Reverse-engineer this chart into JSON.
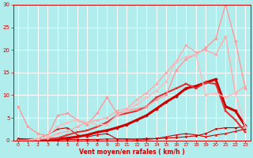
{
  "bg_color": "#b2eded",
  "grid_color": "#ffffff",
  "xlabel": "Vent moyen/en rafales ( km/h )",
  "xlabel_color": "#cc0000",
  "tick_color": "#cc0000",
  "xlim": [
    -0.5,
    23.5
  ],
  "ylim": [
    0,
    30
  ],
  "yticks": [
    0,
    5,
    10,
    15,
    20,
    25,
    30
  ],
  "xticks": [
    0,
    1,
    2,
    3,
    4,
    5,
    6,
    7,
    8,
    9,
    10,
    11,
    12,
    13,
    14,
    15,
    16,
    17,
    18,
    19,
    20,
    21,
    22,
    23
  ],
  "series": [
    {
      "x": [
        0,
        1,
        2,
        3,
        4,
        5,
        6,
        7,
        8,
        9,
        10,
        11,
        12,
        13,
        14,
        15,
        16,
        17,
        18,
        19,
        20,
        21,
        22,
        23
      ],
      "y": [
        0.4,
        0.3,
        0.2,
        0.1,
        0.1,
        0.2,
        0.2,
        0.2,
        0.2,
        0.3,
        0.3,
        0.3,
        0.3,
        0.4,
        0.4,
        0.5,
        0.6,
        0.8,
        1.0,
        1.5,
        2.5,
        2.8,
        2.8,
        3.0
      ],
      "color": "#cc0000",
      "lw": 0.8,
      "marker": "D",
      "ms": 1.5
    },
    {
      "x": [
        0,
        1,
        2,
        3,
        4,
        5,
        6,
        7,
        8,
        9,
        10,
        11,
        12,
        13,
        14,
        15,
        16,
        17,
        18,
        19,
        20,
        21,
        22,
        23
      ],
      "y": [
        0.3,
        0.2,
        0.4,
        1.2,
        2.5,
        2.8,
        1.2,
        0.8,
        1.2,
        1.5,
        0.3,
        0.3,
        0.1,
        0.2,
        0.4,
        0.8,
        1.2,
        1.5,
        1.2,
        0.8,
        1.2,
        1.5,
        2.0,
        2.5
      ],
      "color": "#cc0000",
      "lw": 0.8,
      "marker": "^",
      "ms": 1.5
    },
    {
      "x": [
        0,
        1,
        2,
        3,
        4,
        5,
        6,
        7,
        8,
        9,
        10,
        11,
        12,
        13,
        14,
        15,
        16,
        17,
        18,
        19,
        20,
        21,
        22,
        23
      ],
      "y": [
        0.0,
        0.0,
        0.1,
        0.2,
        0.3,
        0.5,
        0.8,
        1.2,
        1.8,
        2.2,
        2.8,
        3.5,
        4.5,
        5.5,
        7.0,
        8.5,
        9.8,
        11.5,
        12.0,
        12.8,
        13.5,
        7.5,
        6.5,
        3.2
      ],
      "color": "#cc0000",
      "lw": 2.2,
      "marker": "D",
      "ms": 2.0
    },
    {
      "x": [
        0,
        1,
        2,
        3,
        4,
        5,
        6,
        7,
        8,
        9,
        10,
        11,
        12,
        13,
        14,
        15,
        16,
        17,
        18,
        19,
        20,
        21,
        22,
        23
      ],
      "y": [
        0.0,
        0.1,
        0.2,
        0.3,
        0.5,
        1.2,
        1.8,
        2.2,
        3.0,
        4.0,
        5.5,
        6.0,
        6.5,
        7.5,
        9.5,
        10.5,
        11.5,
        12.5,
        11.5,
        12.8,
        12.5,
        6.5,
        4.5,
        1.8
      ],
      "color": "#dd3333",
      "lw": 1.5,
      "marker": "s",
      "ms": 1.8
    },
    {
      "x": [
        0,
        1,
        2,
        3,
        4,
        5,
        6,
        7,
        8,
        9,
        10,
        11,
        12,
        13,
        14,
        15,
        16,
        17,
        18,
        19,
        20,
        21,
        22,
        23
      ],
      "y": [
        7.5,
        3.0,
        1.5,
        1.0,
        5.5,
        6.0,
        4.5,
        3.5,
        6.0,
        9.5,
        6.0,
        6.5,
        7.0,
        7.5,
        9.0,
        10.0,
        15.5,
        18.0,
        19.0,
        20.5,
        22.5,
        30.0,
        22.0,
        11.5
      ],
      "color": "#ff9999",
      "lw": 1.0,
      "marker": "D",
      "ms": 1.8
    },
    {
      "x": [
        0,
        1,
        2,
        3,
        4,
        5,
        6,
        7,
        8,
        9,
        10,
        11,
        12,
        13,
        14,
        15,
        16,
        17,
        18,
        19,
        20,
        21,
        22,
        23
      ],
      "y": [
        0.0,
        0.0,
        0.2,
        0.5,
        1.5,
        2.0,
        3.0,
        4.0,
        4.5,
        5.0,
        6.5,
        7.0,
        9.0,
        10.5,
        12.5,
        15.0,
        17.5,
        21.0,
        19.5,
        20.0,
        19.0,
        23.0,
        10.5,
        12.0
      ],
      "color": "#ffaaaa",
      "lw": 1.0,
      "marker": "D",
      "ms": 1.8
    },
    {
      "x": [
        0,
        1,
        2,
        3,
        4,
        5,
        6,
        7,
        8,
        9,
        10,
        11,
        12,
        13,
        14,
        15,
        16,
        17,
        18,
        19,
        20,
        21,
        22,
        23
      ],
      "y": [
        0.0,
        0.0,
        0.5,
        1.0,
        3.0,
        4.0,
        4.5,
        4.0,
        3.5,
        3.5,
        5.5,
        6.5,
        8.0,
        9.5,
        11.0,
        13.0,
        17.5,
        18.5,
        19.0,
        10.0,
        10.5,
        9.5,
        10.5,
        3.0
      ],
      "color": "#ffbbbb",
      "lw": 1.0,
      "marker": "D",
      "ms": 1.8
    }
  ]
}
